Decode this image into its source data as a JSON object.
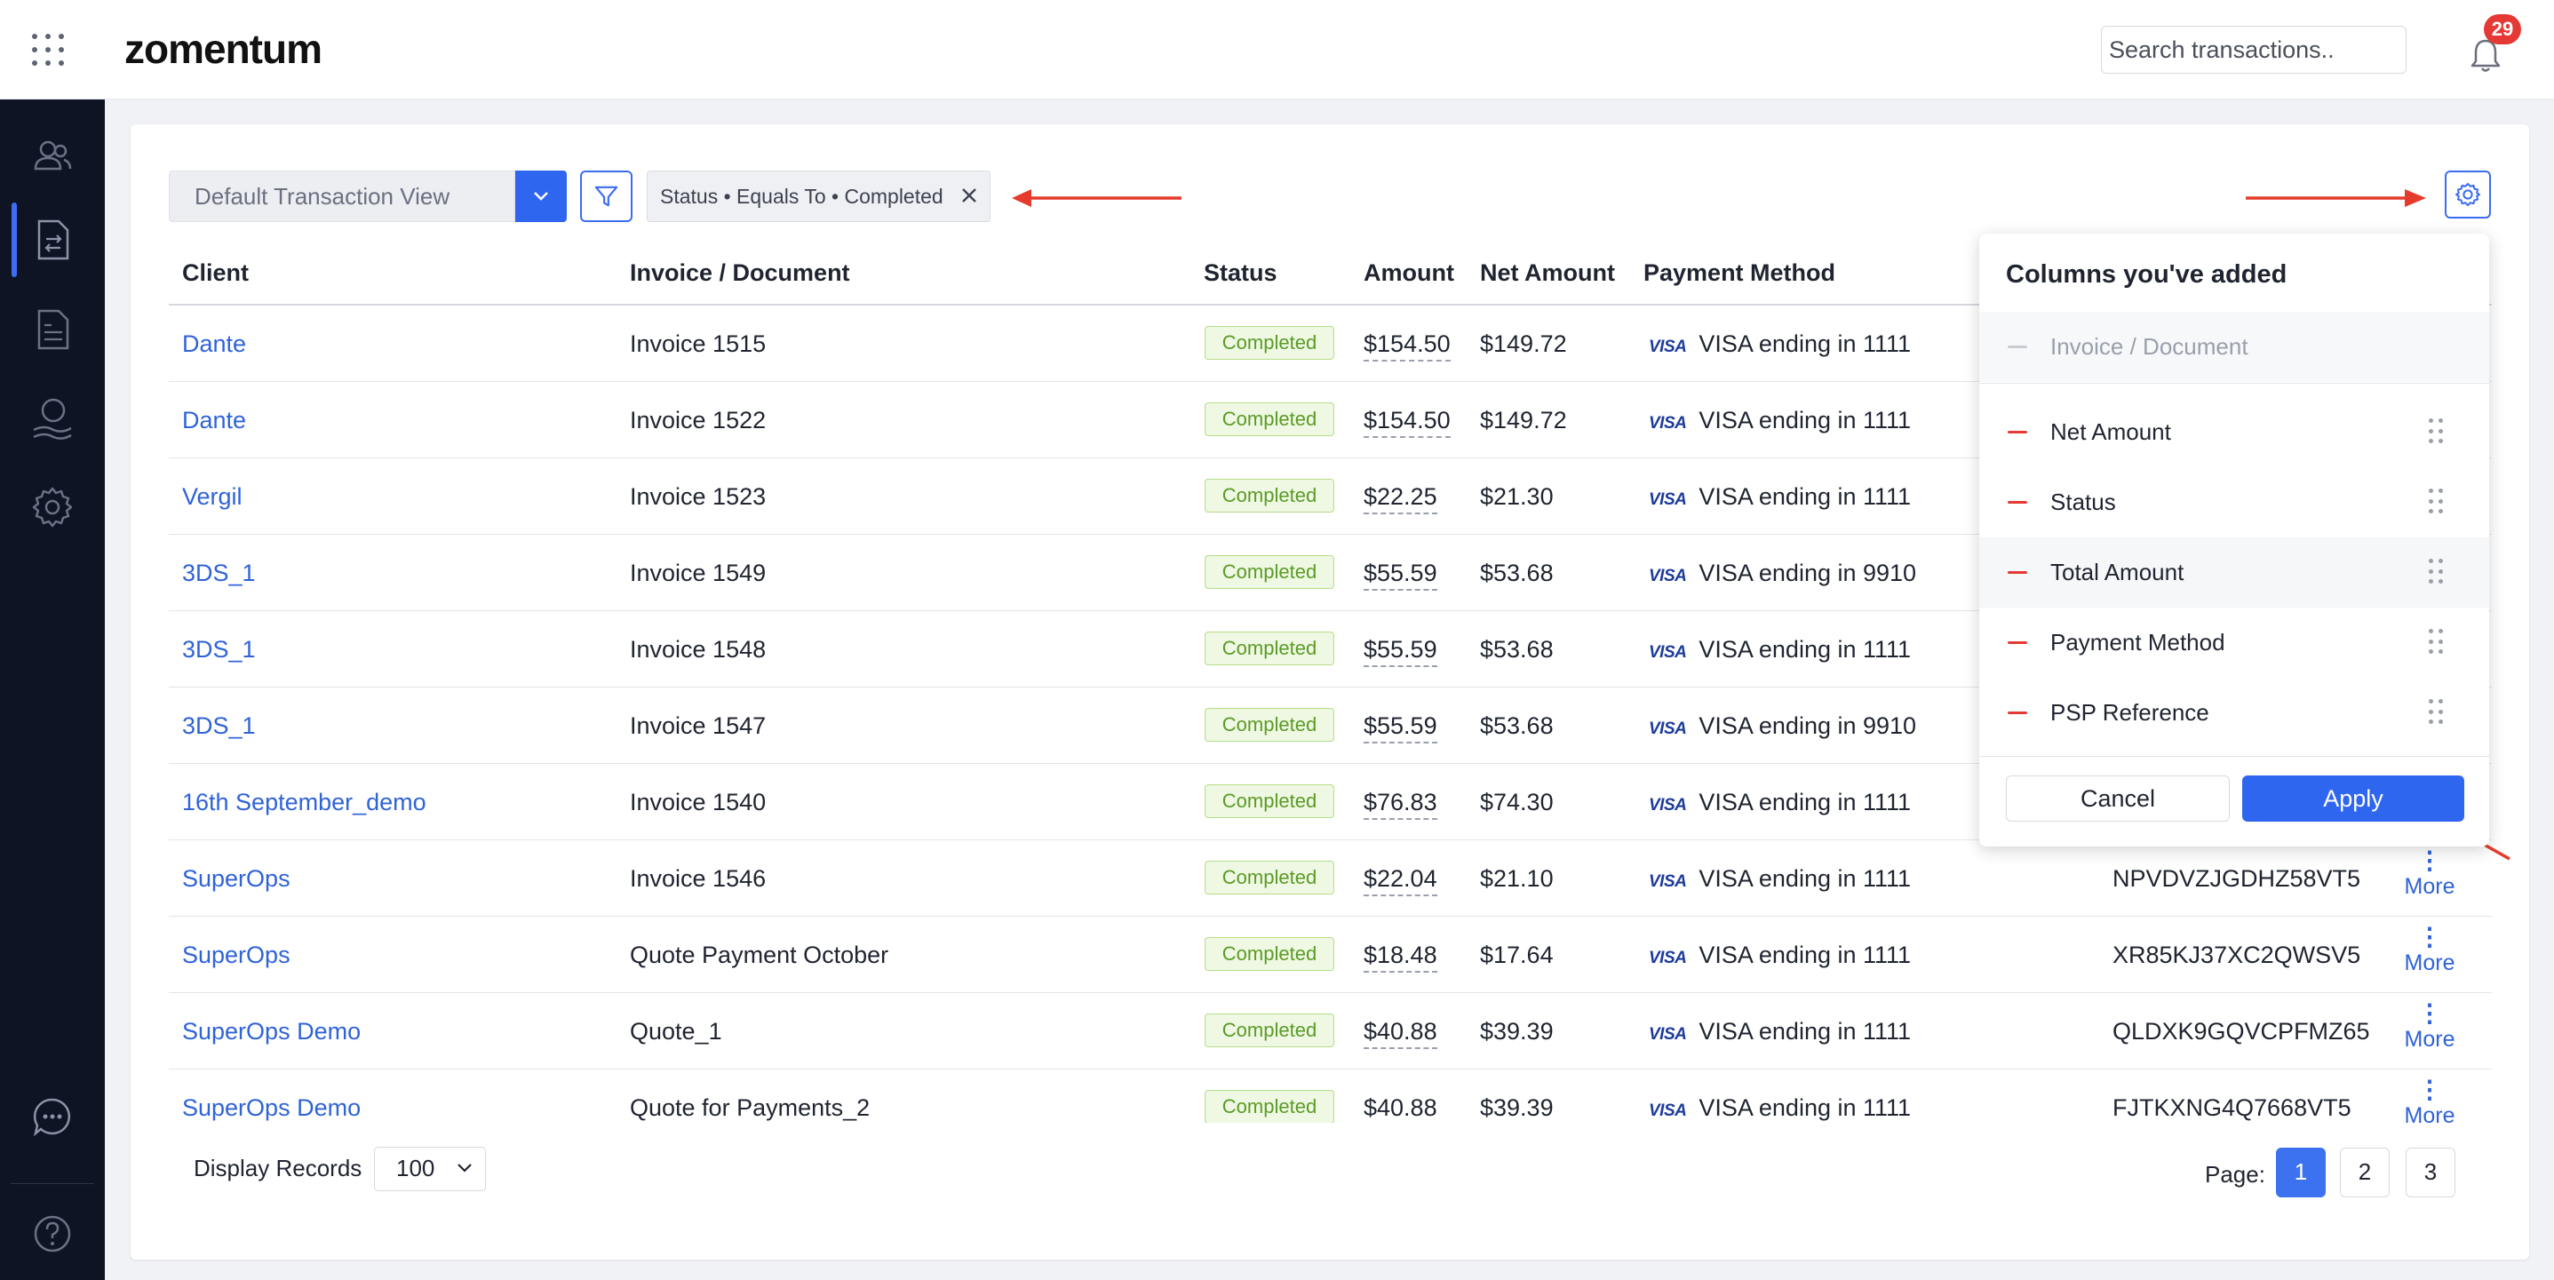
{
  "app": {
    "logo": "zomentum",
    "search_placeholder": "Search transactions..",
    "notification_count": "29"
  },
  "sidebar": {
    "items": [
      {
        "icon": "users-icon"
      },
      {
        "icon": "transactions-icon",
        "active": true
      },
      {
        "icon": "invoice-icon"
      },
      {
        "icon": "payout-icon"
      },
      {
        "icon": "settings-icon"
      },
      {
        "icon": "chat-icon"
      },
      {
        "icon": "help-icon"
      }
    ]
  },
  "toolbar": {
    "view_name": "Default Transaction View",
    "filter_chip": "Status • Equals To • Completed"
  },
  "table": {
    "headers": [
      "Client",
      "Invoice / Document",
      "Status",
      "Amount",
      "Net Amount",
      "Payment Method"
    ],
    "rows": [
      {
        "client": "Dante",
        "invoice": "Invoice 1515",
        "status": "Completed",
        "amount": "$154.50",
        "net": "$149.72",
        "card": "VISA ending in 1111",
        "psp": ""
      },
      {
        "client": "Dante",
        "invoice": "Invoice 1522",
        "status": "Completed",
        "amount": "$154.50",
        "net": "$149.72",
        "card": "VISA ending in 1111",
        "psp": ""
      },
      {
        "client": "Vergil",
        "invoice": "Invoice 1523",
        "status": "Completed",
        "amount": "$22.25",
        "net": "$21.30",
        "card": "VISA ending in 1111",
        "psp": ""
      },
      {
        "client": "3DS_1",
        "invoice": "Invoice 1549",
        "status": "Completed",
        "amount": "$55.59",
        "net": "$53.68",
        "card": "VISA ending in 9910",
        "psp": ""
      },
      {
        "client": "3DS_1",
        "invoice": "Invoice 1548",
        "status": "Completed",
        "amount": "$55.59",
        "net": "$53.68",
        "card": "VISA ending in 1111",
        "psp": ""
      },
      {
        "client": "3DS_1",
        "invoice": "Invoice 1547",
        "status": "Completed",
        "amount": "$55.59",
        "net": "$53.68",
        "card": "VISA ending in 9910",
        "psp": ""
      },
      {
        "client": "16th September_demo",
        "invoice": "Invoice 1540",
        "status": "Completed",
        "amount": "$76.83",
        "net": "$74.30",
        "card": "VISA ending in 1111",
        "psp": ""
      },
      {
        "client": "SuperOps",
        "invoice": "Invoice 1546",
        "status": "Completed",
        "amount": "$22.04",
        "net": "$21.10",
        "card": "VISA ending in 1111",
        "psp": "NPVDVZJGDHZ58VT5"
      },
      {
        "client": "SuperOps",
        "invoice": "Quote Payment October",
        "status": "Completed",
        "amount": "$18.48",
        "net": "$17.64",
        "card": "VISA ending in 1111",
        "psp": "XR85KJ37XC2QWSV5"
      },
      {
        "client": "SuperOps Demo",
        "invoice": "Quote_1",
        "status": "Completed",
        "amount": "$40.88",
        "net": "$39.39",
        "card": "VISA ending in 1111",
        "psp": "QLDXK9GQVCPFMZ65"
      },
      {
        "client": "SuperOps Demo",
        "invoice": "Quote for Payments_2",
        "status": "Completed",
        "amount": "$40.88",
        "net": "$39.39",
        "card": "VISA ending in 1111",
        "psp": "FJTKXNG4Q7668VT5"
      }
    ],
    "card_brand": "VISA",
    "more_label": "More"
  },
  "footer": {
    "display_records_label": "Display Records",
    "records_value": "100",
    "page_label": "Page:",
    "pages": [
      "1",
      "2",
      "3"
    ],
    "current_page": "1"
  },
  "columns_panel": {
    "title": "Columns you've added",
    "locked_item": "Invoice / Document",
    "items": [
      "Net Amount",
      "Status",
      "Total Amount",
      "Payment Method",
      "PSP Reference"
    ],
    "cancel_label": "Cancel",
    "apply_label": "Apply"
  },
  "colors": {
    "accent": "#2f66f0",
    "link": "#2f63d8",
    "sidebar_bg": "#0f1424",
    "badge_green": "#5a9b25",
    "annotation_red": "#e53b2c"
  }
}
